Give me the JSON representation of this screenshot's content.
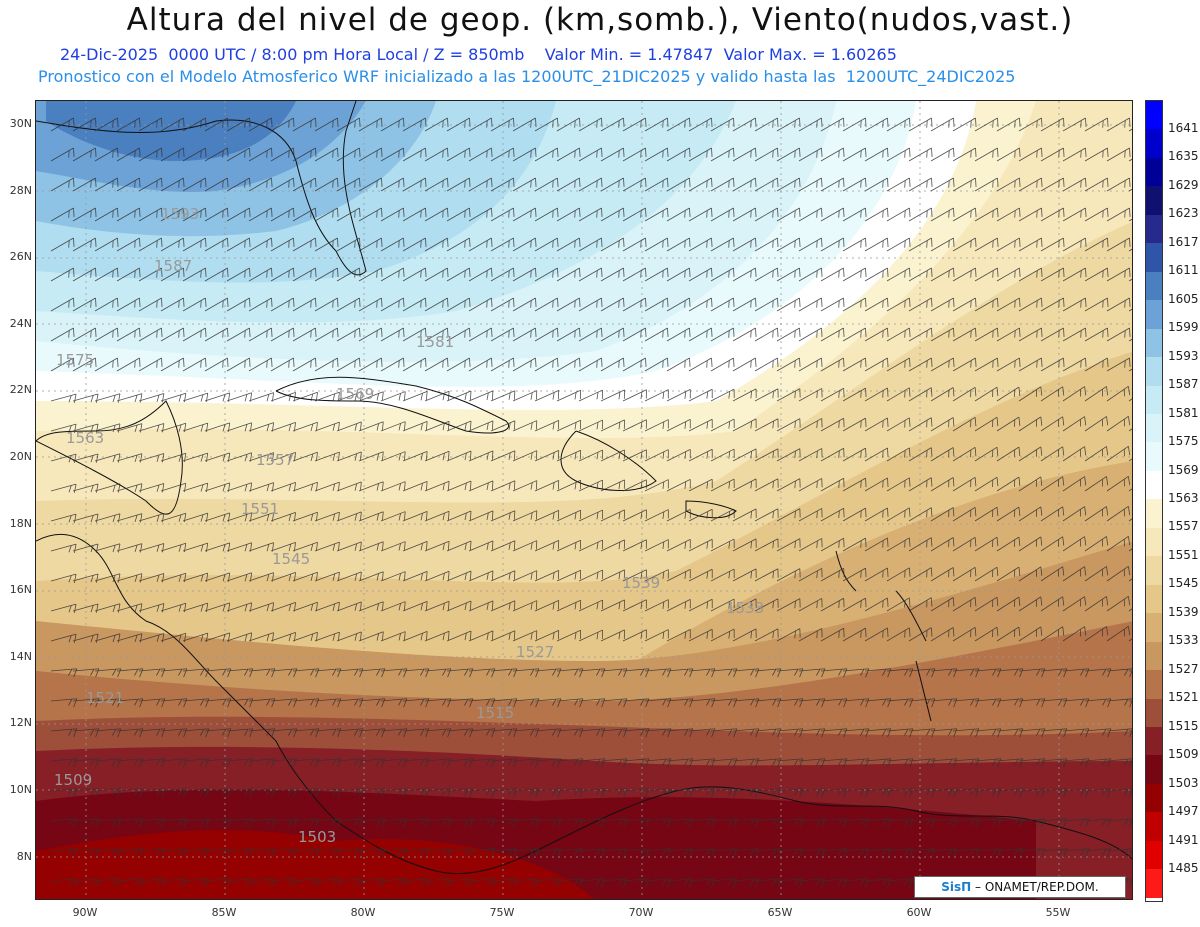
{
  "header": {
    "title": "Altura del nivel de geop. (km,somb.), Viento(nudos,vast.)",
    "subtitle_line1": "24-Dic-2025  0000 UTC / 8:00 pm Hora Local / Z = 850mb    Valor Min. = 1.47847  Valor Max. = 1.60265",
    "subtitle_line2": "Pronostico con el Modelo Atmosferico WRF inicializado a las 1200UTC_21DIC2025 y valido hasta las  1200UTC_24DIC2025"
  },
  "map": {
    "lat_ticks": [
      "30N",
      "28N",
      "26N",
      "24N",
      "22N",
      "20N",
      "18N",
      "16N",
      "14N",
      "12N",
      "10N",
      "8N"
    ],
    "lon_ticks": [
      "90W",
      "85W",
      "80W",
      "75W",
      "70W",
      "65W",
      "60W",
      "55W"
    ],
    "contour_labels": [
      "1593",
      "1587",
      "1581",
      "1575",
      "1569",
      "1563",
      "1557",
      "1551",
      "1545",
      "1539",
      "1533",
      "1527",
      "1521",
      "1515",
      "1509",
      "1503"
    ],
    "credit_logo": "SisΠ",
    "credit_text": " – ONAMET/REP.DOM."
  },
  "colorbar": {
    "levels": [
      "1641",
      "1635",
      "1629",
      "1623",
      "1617",
      "1611",
      "1605",
      "1599",
      "1593",
      "1587",
      "1581",
      "1575",
      "1569",
      "1563",
      "1557",
      "1551",
      "1545",
      "1539",
      "1533",
      "1527",
      "1521",
      "1515",
      "1509",
      "1503",
      "1497",
      "1491",
      "1485"
    ],
    "colors": [
      "#0000ff",
      "#0000cc",
      "#000099",
      "#101070",
      "#252a8c",
      "#2e55a8",
      "#4a7fc0",
      "#6da2d6",
      "#8ec3e6",
      "#b0def0",
      "#c6ebf5",
      "#d9f3f8",
      "#e9fafc",
      "#ffffff",
      "#fbf3d0",
      "#f7e8bb",
      "#efd9a2",
      "#e6c78a",
      "#d9b074",
      "#c99760",
      "#b5744a",
      "#9e4f3a",
      "#861f26",
      "#760614",
      "#950000",
      "#c00000",
      "#e00000",
      "#ff1a1a"
    ]
  }
}
